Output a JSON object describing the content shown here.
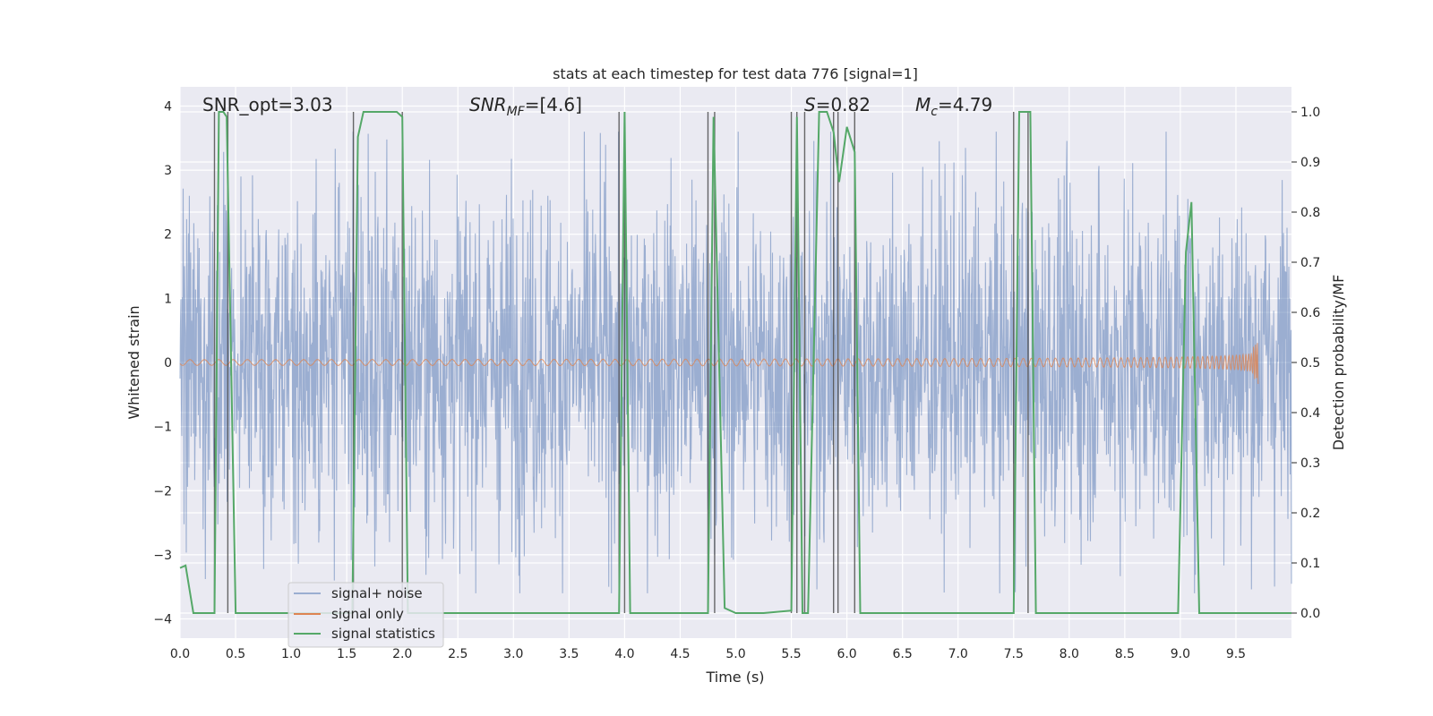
{
  "chart_data": {
    "type": "line",
    "title": "stats at each timestep for test data 776 [signal=1]",
    "xlabel": "Time (s)",
    "ylabel_left": "Whitened strain",
    "ylabel_right": "Detection probability/MF",
    "xlim": [
      0.0,
      10.0
    ],
    "ylim_left": [
      -4.3,
      4.3
    ],
    "ylim_right": [
      -0.05,
      1.05
    ],
    "x_ticks": [
      "0.0",
      "0.5",
      "1.0",
      "1.5",
      "2.0",
      "2.5",
      "3.0",
      "3.5",
      "4.0",
      "4.5",
      "5.0",
      "5.5",
      "6.0",
      "6.5",
      "7.0",
      "7.5",
      "8.0",
      "8.5",
      "9.0",
      "9.5"
    ],
    "y_ticks_left": [
      "−4",
      "−3",
      "−2",
      "−1",
      "0",
      "1",
      "2",
      "3",
      "4"
    ],
    "y_ticks_right": [
      "0.0",
      "0.1",
      "0.2",
      "0.3",
      "0.4",
      "0.5",
      "0.6",
      "0.7",
      "0.8",
      "0.9",
      "1.0"
    ],
    "grid": true,
    "legend_position": "lower-left",
    "annotations": {
      "snr_opt": "SNR_opt=3.03",
      "snr_mf_main": "SNR",
      "snr_mf_sub": "MF",
      "snr_mf_value": "=[4.6]",
      "s_main": "S",
      "s_value": "=0.82",
      "mc_main": "M",
      "mc_sub": "c",
      "mc_value": "=4.79"
    },
    "series": [
      {
        "name": "signal+ noise",
        "color": "#4c72b0",
        "axis": "left",
        "kind": "noise_envelope",
        "typical_amplitude": 1.7,
        "max_amplitude": 3.6
      },
      {
        "name": "signal only",
        "color": "#dd8452",
        "axis": "left",
        "kind": "chirp",
        "x_peak": 9.7,
        "peak_amplitude": 0.35
      },
      {
        "name": "signal statistics",
        "color": "#55a868",
        "axis": "right",
        "x": [
          0.0,
          0.05,
          0.12,
          0.31,
          0.35,
          0.39,
          0.42,
          0.5,
          1.55,
          1.6,
          1.65,
          1.95,
          2.0,
          2.05,
          3.95,
          4.0,
          4.05,
          4.75,
          4.8,
          4.9,
          5.0,
          5.25,
          5.5,
          5.55,
          5.6,
          5.65,
          5.75,
          5.82,
          5.88,
          5.93,
          6.0,
          6.07,
          6.12,
          7.5,
          7.55,
          7.65,
          7.7,
          8.98,
          9.05,
          9.1,
          9.17,
          10.0
        ],
        "y": [
          0.09,
          0.095,
          0.0,
          0.0,
          1.0,
          1.0,
          0.99,
          0.0,
          0.0,
          0.95,
          1.0,
          1.0,
          0.99,
          0.0,
          0.0,
          1.0,
          0.0,
          0.0,
          0.99,
          0.01,
          0.0,
          0.0,
          0.005,
          0.99,
          0.0,
          0.0,
          1.0,
          1.0,
          0.96,
          0.86,
          0.97,
          0.92,
          0.0,
          0.0,
          1.0,
          1.0,
          0.0,
          0.0,
          0.72,
          0.82,
          0.0,
          0.0
        ]
      }
    ],
    "vertical_markers": [
      0.31,
      0.43,
      1.56,
      2.0,
      3.95,
      4.0,
      4.75,
      4.81,
      5.5,
      5.55,
      5.62,
      5.88,
      5.92,
      6.07,
      7.5,
      7.63
    ],
    "legend": [
      "signal+ noise",
      "signal only",
      "signal statistics"
    ]
  }
}
